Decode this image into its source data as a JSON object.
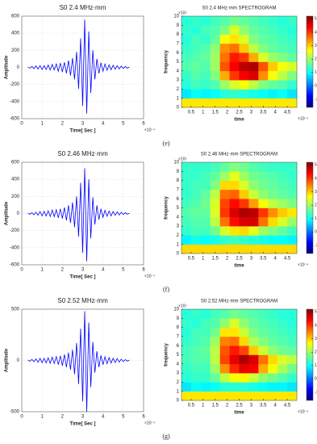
{
  "chart_data": [
    {
      "type": "line",
      "title": "S0 2.4 MHz·mm",
      "xlabel": "Time[ Sec ]",
      "ylabel": "Amplitude",
      "x_exponent": "×10⁻⁴",
      "xlim": [
        0,
        6
      ],
      "xticks": [
        0,
        1,
        2,
        3,
        4,
        5,
        6
      ],
      "ylim": [
        -600,
        600
      ],
      "yticks": [
        600,
        400,
        200,
        0,
        -200,
        -400,
        -600
      ],
      "grid": true,
      "x": [
        0.3,
        0.4,
        0.5,
        0.6,
        0.7,
        0.8,
        0.9,
        1.0,
        1.1,
        1.2,
        1.3,
        1.4,
        1.5,
        1.6,
        1.7,
        1.8,
        1.9,
        2.0,
        2.1,
        2.2,
        2.3,
        2.4,
        2.5,
        2.6,
        2.7,
        2.8,
        2.9,
        3.0,
        3.1,
        3.2,
        3.3,
        3.4,
        3.5,
        3.6,
        3.7,
        3.8,
        3.9,
        4.0,
        4.1,
        4.2,
        4.3,
        4.4,
        4.5,
        4.6,
        4.7,
        4.8,
        4.9,
        5.0,
        5.1,
        5.2,
        5.3
      ],
      "series": [
        {
          "color": "#0000ff",
          "values": [
            5,
            -10,
            12,
            -15,
            18,
            -20,
            22,
            -25,
            20,
            -25,
            28,
            -30,
            35,
            -30,
            40,
            -45,
            50,
            -55,
            60,
            -70,
            80,
            -95,
            110,
            -140,
            180,
            -250,
            340,
            -450,
            560,
            -540,
            420,
            -300,
            200,
            -140,
            100,
            -70,
            55,
            -45,
            40,
            -35,
            30,
            -28,
            25,
            -22,
            20,
            -18,
            15,
            -12,
            10,
            -8,
            5
          ]
        }
      ]
    },
    {
      "type": "heatmap",
      "title": "S0 2.4 MHz·mm SPECTROGRAM",
      "xlabel": "time",
      "ylabel": "frequency",
      "x_exponent": "×10⁻⁴",
      "y_exponent": "×10⁵",
      "xlim": [
        0.1,
        4.9
      ],
      "xticks": [
        0.5,
        1,
        1.5,
        2,
        2.5,
        3,
        3.5,
        4,
        4.5
      ],
      "ylim": [
        0,
        10
      ],
      "yticks": [
        0,
        1,
        2,
        3,
        4,
        5,
        6,
        7,
        8,
        9,
        10
      ],
      "colormap": "jet",
      "clim": [
        -1.6,
        5.2
      ],
      "cticks": [
        -1,
        0,
        1,
        2,
        3,
        4,
        5
      ],
      "x": [
        0.3,
        0.7,
        1.1,
        1.5,
        1.9,
        2.3,
        2.7,
        3.1,
        3.5,
        3.9,
        4.3,
        4.7
      ],
      "y": [
        0.5,
        1.5,
        2.5,
        3.5,
        4.5,
        5.5,
        6.5,
        7.5,
        8.5,
        9.5
      ],
      "z": [
        [
          2.8,
          2.8,
          2.8,
          2.8,
          2.8,
          2.8,
          2.8,
          2.8,
          2.8,
          2.8,
          2.8,
          2.8
        ],
        [
          0.8,
          1.0,
          0.9,
          1.0,
          1.2,
          1.3,
          1.2,
          1.1,
          1.0,
          0.9,
          1.0,
          0.8
        ],
        [
          1.2,
          1.4,
          1.3,
          1.5,
          2.0,
          2.4,
          2.6,
          2.2,
          1.8,
          1.6,
          1.5,
          1.3
        ],
        [
          1.3,
          1.5,
          1.4,
          1.8,
          3.2,
          4.0,
          4.4,
          4.6,
          3.4,
          2.6,
          2.2,
          1.8
        ],
        [
          1.5,
          1.6,
          1.5,
          2.0,
          3.8,
          4.4,
          4.8,
          4.9,
          3.8,
          3.0,
          2.6,
          2.4
        ],
        [
          1.4,
          1.5,
          1.6,
          2.0,
          3.6,
          4.2,
          4.0,
          3.2,
          2.4,
          2.0,
          1.8,
          1.6
        ],
        [
          1.3,
          1.4,
          1.5,
          1.9,
          3.4,
          3.6,
          3.0,
          2.2,
          1.8,
          1.6,
          1.5,
          1.4
        ],
        [
          1.2,
          1.4,
          1.3,
          1.6,
          2.6,
          2.8,
          2.4,
          1.8,
          1.6,
          1.5,
          1.4,
          1.3
        ],
        [
          1.3,
          1.2,
          1.4,
          1.5,
          1.8,
          2.4,
          1.9,
          1.6,
          1.5,
          1.4,
          1.3,
          1.2
        ],
        [
          1.2,
          1.3,
          1.2,
          1.4,
          1.5,
          1.7,
          1.6,
          1.5,
          1.4,
          1.3,
          1.2,
          1.3
        ]
      ]
    },
    {
      "type": "line",
      "title": "S0 2.46 MHz·mm",
      "xlabel": "Time[ Sec ]",
      "ylabel": "Amplitude",
      "x_exponent": "×10⁻⁴",
      "xlim": [
        0,
        6
      ],
      "xticks": [
        0,
        1,
        2,
        3,
        4,
        5,
        6
      ],
      "ylim": [
        -600,
        600
      ],
      "yticks": [
        600,
        400,
        200,
        0,
        -200,
        -400,
        -600
      ],
      "grid": true,
      "x": [
        0.3,
        0.4,
        0.5,
        0.6,
        0.7,
        0.8,
        0.9,
        1.0,
        1.1,
        1.2,
        1.3,
        1.4,
        1.5,
        1.6,
        1.7,
        1.8,
        1.9,
        2.0,
        2.1,
        2.2,
        2.3,
        2.4,
        2.5,
        2.6,
        2.7,
        2.8,
        2.9,
        3.0,
        3.1,
        3.2,
        3.3,
        3.4,
        3.5,
        3.6,
        3.7,
        3.8,
        3.9,
        4.0,
        4.1,
        4.2,
        4.3,
        4.4,
        4.5,
        4.6,
        4.7,
        4.8,
        4.9,
        5.0,
        5.1,
        5.2,
        5.3
      ],
      "series": [
        {
          "color": "#0000ff",
          "values": [
            5,
            -8,
            10,
            -14,
            16,
            -20,
            24,
            -28,
            26,
            -30,
            32,
            -35,
            40,
            -38,
            45,
            -50,
            55,
            -60,
            70,
            -80,
            95,
            -110,
            130,
            -160,
            200,
            -270,
            360,
            -460,
            530,
            -560,
            400,
            -290,
            190,
            -130,
            95,
            -70,
            55,
            -45,
            38,
            -33,
            30,
            -27,
            24,
            -21,
            19,
            -17,
            14,
            -11,
            9,
            -7,
            4
          ]
        }
      ]
    },
    {
      "type": "heatmap",
      "title": "S0 2.46 MHz·mm SPECTROGRAM",
      "xlabel": "time",
      "ylabel": "frequency",
      "x_exponent": "×10⁻⁴",
      "y_exponent": "×10⁵",
      "xlim": [
        0.1,
        4.9
      ],
      "xticks": [
        0.5,
        1,
        1.5,
        2,
        2.5,
        3,
        3.5,
        4,
        4.5
      ],
      "ylim": [
        0,
        10
      ],
      "yticks": [
        0,
        1,
        2,
        3,
        4,
        5,
        6,
        7,
        8,
        9,
        10
      ],
      "colormap": "jet",
      "clim": [
        -1.6,
        5.2
      ],
      "cticks": [
        -1,
        0,
        1,
        2,
        3,
        4,
        5
      ],
      "x": [
        0.3,
        0.7,
        1.1,
        1.5,
        1.9,
        2.3,
        2.7,
        3.1,
        3.5,
        3.9,
        4.3,
        4.7
      ],
      "y": [
        0.5,
        1.5,
        2.5,
        3.5,
        4.5,
        5.5,
        6.5,
        7.5,
        8.5,
        9.5
      ],
      "z": [
        [
          2.9,
          2.9,
          2.9,
          2.9,
          2.9,
          2.9,
          2.9,
          2.9,
          2.9,
          2.9,
          2.9,
          2.9
        ],
        [
          0.9,
          1.1,
          1.0,
          1.1,
          1.3,
          1.4,
          1.3,
          1.2,
          1.1,
          1.0,
          1.0,
          0.9
        ],
        [
          1.3,
          1.4,
          1.4,
          1.7,
          2.4,
          2.8,
          2.9,
          2.5,
          2.0,
          1.8,
          1.6,
          1.4
        ],
        [
          1.4,
          1.5,
          1.5,
          2.2,
          3.6,
          4.3,
          4.6,
          4.6,
          3.6,
          2.9,
          2.4,
          2.0
        ],
        [
          1.5,
          1.6,
          1.6,
          2.4,
          4.0,
          4.6,
          4.9,
          4.8,
          4.0,
          3.4,
          3.0,
          2.8
        ],
        [
          1.4,
          1.5,
          1.7,
          2.4,
          3.9,
          4.3,
          4.0,
          3.3,
          2.6,
          2.2,
          2.0,
          1.8
        ],
        [
          1.3,
          1.4,
          1.6,
          2.2,
          3.6,
          3.7,
          3.0,
          2.3,
          1.9,
          1.7,
          1.6,
          1.5
        ],
        [
          1.3,
          1.4,
          1.4,
          1.8,
          2.9,
          2.9,
          2.4,
          1.9,
          1.7,
          1.6,
          1.5,
          1.4
        ],
        [
          1.3,
          1.3,
          1.4,
          1.6,
          2.0,
          2.5,
          2.0,
          1.7,
          1.6,
          1.5,
          1.4,
          1.3
        ],
        [
          1.3,
          1.3,
          1.3,
          1.4,
          1.6,
          1.8,
          1.7,
          1.5,
          1.4,
          1.3,
          1.3,
          1.3
        ]
      ]
    },
    {
      "type": "line",
      "title": "S0 2.52 MHz·mm",
      "xlabel": "Time[ Sec ]",
      "ylabel": "Amplitude",
      "x_exponent": "×10⁻⁴",
      "xlim": [
        0,
        6
      ],
      "xticks": [
        0,
        1,
        2,
        3,
        4,
        5,
        6
      ],
      "ylim": [
        -500,
        500
      ],
      "yticks": [
        500,
        0,
        -500
      ],
      "grid": true,
      "x": [
        0.3,
        0.4,
        0.5,
        0.6,
        0.7,
        0.8,
        0.9,
        1.0,
        1.1,
        1.2,
        1.3,
        1.4,
        1.5,
        1.6,
        1.7,
        1.8,
        1.9,
        2.0,
        2.1,
        2.2,
        2.3,
        2.4,
        2.5,
        2.6,
        2.7,
        2.8,
        2.9,
        3.0,
        3.1,
        3.2,
        3.3,
        3.4,
        3.5,
        3.6,
        3.7,
        3.8,
        3.9,
        4.0,
        4.1,
        4.2,
        4.3,
        4.4,
        4.5,
        4.6,
        4.7,
        4.8,
        4.9,
        5.0,
        5.1,
        5.2,
        5.3
      ],
      "series": [
        {
          "color": "#0000ff",
          "values": [
            4,
            -8,
            10,
            -12,
            15,
            -18,
            20,
            -22,
            20,
            -24,
            26,
            -28,
            32,
            -30,
            38,
            -42,
            46,
            -52,
            58,
            -66,
            76,
            -90,
            105,
            -135,
            170,
            -230,
            310,
            -400,
            480,
            -500,
            370,
            -260,
            180,
            -120,
            90,
            -65,
            50,
            -42,
            36,
            -32,
            28,
            -25,
            22,
            -20,
            18,
            -16,
            13,
            -10,
            8,
            -6,
            4
          ]
        }
      ]
    },
    {
      "type": "heatmap",
      "title": "S0 2.52 MHz·mm SPECTROGRAM",
      "xlabel": "time",
      "ylabel": "frequency",
      "x_exponent": "×10⁻⁴",
      "y_exponent": "×10⁵",
      "xlim": [
        0.1,
        4.9
      ],
      "xticks": [
        0.5,
        1,
        1.5,
        2,
        2.5,
        3,
        3.5,
        4,
        4.5
      ],
      "ylim": [
        0,
        10
      ],
      "yticks": [
        0,
        1,
        2,
        3,
        4,
        5,
        6,
        7,
        8,
        9,
        10
      ],
      "colormap": "jet",
      "clim": [
        -1.6,
        5.2
      ],
      "cticks": [
        -1,
        0,
        1,
        2,
        3,
        4,
        5
      ],
      "x": [
        0.3,
        0.7,
        1.1,
        1.5,
        1.9,
        2.3,
        2.7,
        3.1,
        3.5,
        3.9,
        4.3,
        4.7
      ],
      "y": [
        0.5,
        1.5,
        2.5,
        3.5,
        4.5,
        5.5,
        6.5,
        7.5,
        8.5,
        9.5
      ],
      "z": [
        [
          2.8,
          2.8,
          2.8,
          2.8,
          2.8,
          2.8,
          2.8,
          2.8,
          2.8,
          2.8,
          2.8,
          2.8
        ],
        [
          0.8,
          1.0,
          0.9,
          1.0,
          1.2,
          1.2,
          1.2,
          1.1,
          1.0,
          0.9,
          0.9,
          0.8
        ],
        [
          1.2,
          1.3,
          1.3,
          1.6,
          2.2,
          2.6,
          2.7,
          2.3,
          1.9,
          1.7,
          1.5,
          1.3
        ],
        [
          1.3,
          1.4,
          1.4,
          2.0,
          3.4,
          4.1,
          4.5,
          4.4,
          3.2,
          2.6,
          2.1,
          1.7
        ],
        [
          1.4,
          1.5,
          1.5,
          2.2,
          3.9,
          4.5,
          4.9,
          4.6,
          3.6,
          2.9,
          2.4,
          2.2
        ],
        [
          1.4,
          1.5,
          1.6,
          2.2,
          3.8,
          4.2,
          3.9,
          3.0,
          2.3,
          1.9,
          1.7,
          1.6
        ],
        [
          1.3,
          1.4,
          1.5,
          2.0,
          3.5,
          3.6,
          2.9,
          2.1,
          1.8,
          1.6,
          1.5,
          1.4
        ],
        [
          1.2,
          1.4,
          1.4,
          1.7,
          2.8,
          2.8,
          2.3,
          1.8,
          1.6,
          1.5,
          1.4,
          1.3
        ],
        [
          1.3,
          1.2,
          1.4,
          1.5,
          1.9,
          2.4,
          1.9,
          1.6,
          1.5,
          1.4,
          1.3,
          1.2
        ],
        [
          1.2,
          1.3,
          1.2,
          1.4,
          1.5,
          1.7,
          1.6,
          1.5,
          1.4,
          1.3,
          1.2,
          1.2
        ]
      ]
    }
  ],
  "captions": [
    "(e)",
    "(f)",
    "(g)"
  ]
}
